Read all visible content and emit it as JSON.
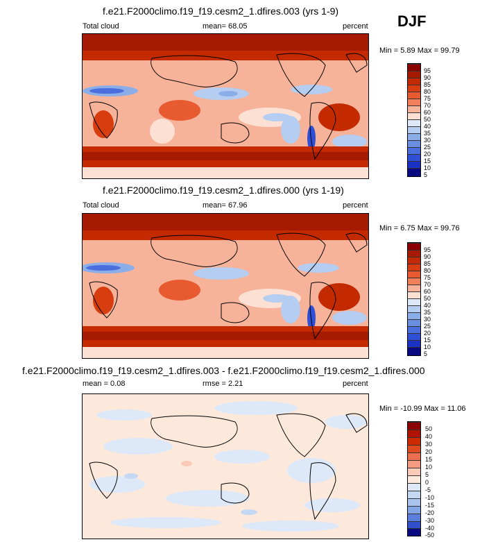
{
  "season": "DJF",
  "panels": [
    {
      "title": "f.e21.F2000climo.f19_f19.cesm2_1.dfires.003 (yrs 1-9)",
      "left_label": "Total cloud",
      "center_label": "mean=  68.05",
      "units": "percent",
      "minmax": "Min =   5.89 Max =  99.79",
      "levels": [
        "95",
        "90",
        "85",
        "80",
        "75",
        "70",
        "60",
        "50",
        "40",
        "35",
        "30",
        "25",
        "20",
        "15",
        "10",
        "5"
      ]
    },
    {
      "title": "f.e21.F2000climo.f19_f19.cesm2_1.dfires.000 (yrs 1-19)",
      "left_label": "Total cloud",
      "center_label": "mean=  67.96",
      "units": "percent",
      "minmax": "Min =   6.75 Max =  99.76",
      "levels": [
        "95",
        "90",
        "85",
        "80",
        "75",
        "70",
        "60",
        "50",
        "40",
        "35",
        "30",
        "25",
        "20",
        "15",
        "10",
        "5"
      ]
    },
    {
      "title": "f.e21.F2000climo.f19_f19.cesm2_1.dfires.003 - f.e21.F2000climo.f19_f19.cesm2_1.dfires.000",
      "left_label": "mean =   0.08",
      "center_label": "rmse =   2.21",
      "units": "percent",
      "minmax": "Min = -10.99 Max =  11.06",
      "levels": [
        "50",
        "40",
        "30",
        "20",
        "15",
        "10",
        "5",
        "0",
        "-5",
        "-10",
        "-15",
        "-20",
        "-30",
        "-40",
        "-50"
      ]
    }
  ],
  "colors": {
    "abs_scale": [
      "#8b0000",
      "#a51a00",
      "#c42a00",
      "#d83d10",
      "#e85a30",
      "#f0805a",
      "#f7b39a",
      "#fde0d4",
      "#dde8f8",
      "#b4cdf0",
      "#8caee8",
      "#6a8ee0",
      "#4b6ede",
      "#2e4fd6",
      "#1a33c4",
      "#0a0a80"
    ],
    "diff_scale": [
      "#8b0000",
      "#b01200",
      "#cc2a00",
      "#e04a20",
      "#ec7050",
      "#f49a80",
      "#fbcab8",
      "#fde8dc",
      "#dde8f8",
      "#c4d8f4",
      "#a8c4ee",
      "#84a6e6",
      "#5a80dc",
      "#3050cc",
      "#0a0a80"
    ]
  }
}
